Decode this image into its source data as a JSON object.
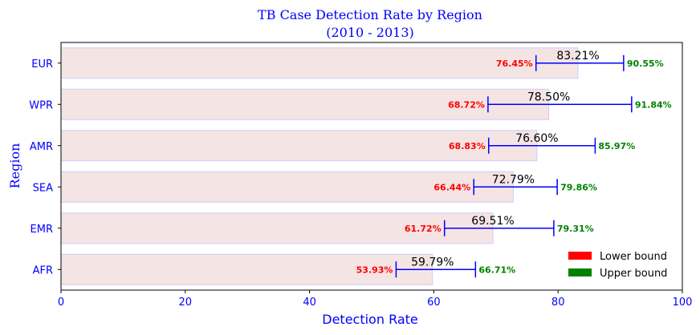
{
  "chart_data": {
    "type": "bar",
    "orientation": "horizontal",
    "title": "TB Case Detection Rate by Region",
    "subtitle": "(2010 - 2013)",
    "xlabel": "Detection Rate",
    "ylabel": "Region",
    "xlim": [
      0,
      100
    ],
    "xticks": [
      0,
      20,
      40,
      60,
      80,
      100
    ],
    "categories": [
      "AFR",
      "EMR",
      "SEA",
      "AMR",
      "WPR",
      "EUR"
    ],
    "values": [
      59.79,
      69.51,
      72.79,
      76.6,
      78.5,
      83.21
    ],
    "value_labels": [
      "59.79%",
      "69.51%",
      "72.79%",
      "76.60%",
      "78.50%",
      "83.21%"
    ],
    "lower_bounds": [
      53.93,
      61.72,
      66.44,
      68.83,
      68.72,
      76.45
    ],
    "lower_labels": [
      "53.93%",
      "61.72%",
      "66.44%",
      "68.83%",
      "68.72%",
      "76.45%"
    ],
    "upper_bounds": [
      66.71,
      79.31,
      79.86,
      85.97,
      91.84,
      90.55
    ],
    "upper_labels": [
      "66.71%",
      "79.31%",
      "79.86%",
      "85.97%",
      "91.84%",
      "90.55%"
    ],
    "legend": {
      "placement": "lower-right",
      "entries": [
        {
          "label": "Lower bound",
          "color": "#ff0000"
        },
        {
          "label": "Upper bound",
          "color": "#008000"
        }
      ]
    },
    "colors": {
      "bar_fill": "#f5e4e4",
      "bar_edge": "#ccccff",
      "error_bar": "#0000ff",
      "text_accent": "#0000ff"
    },
    "grid": false
  }
}
